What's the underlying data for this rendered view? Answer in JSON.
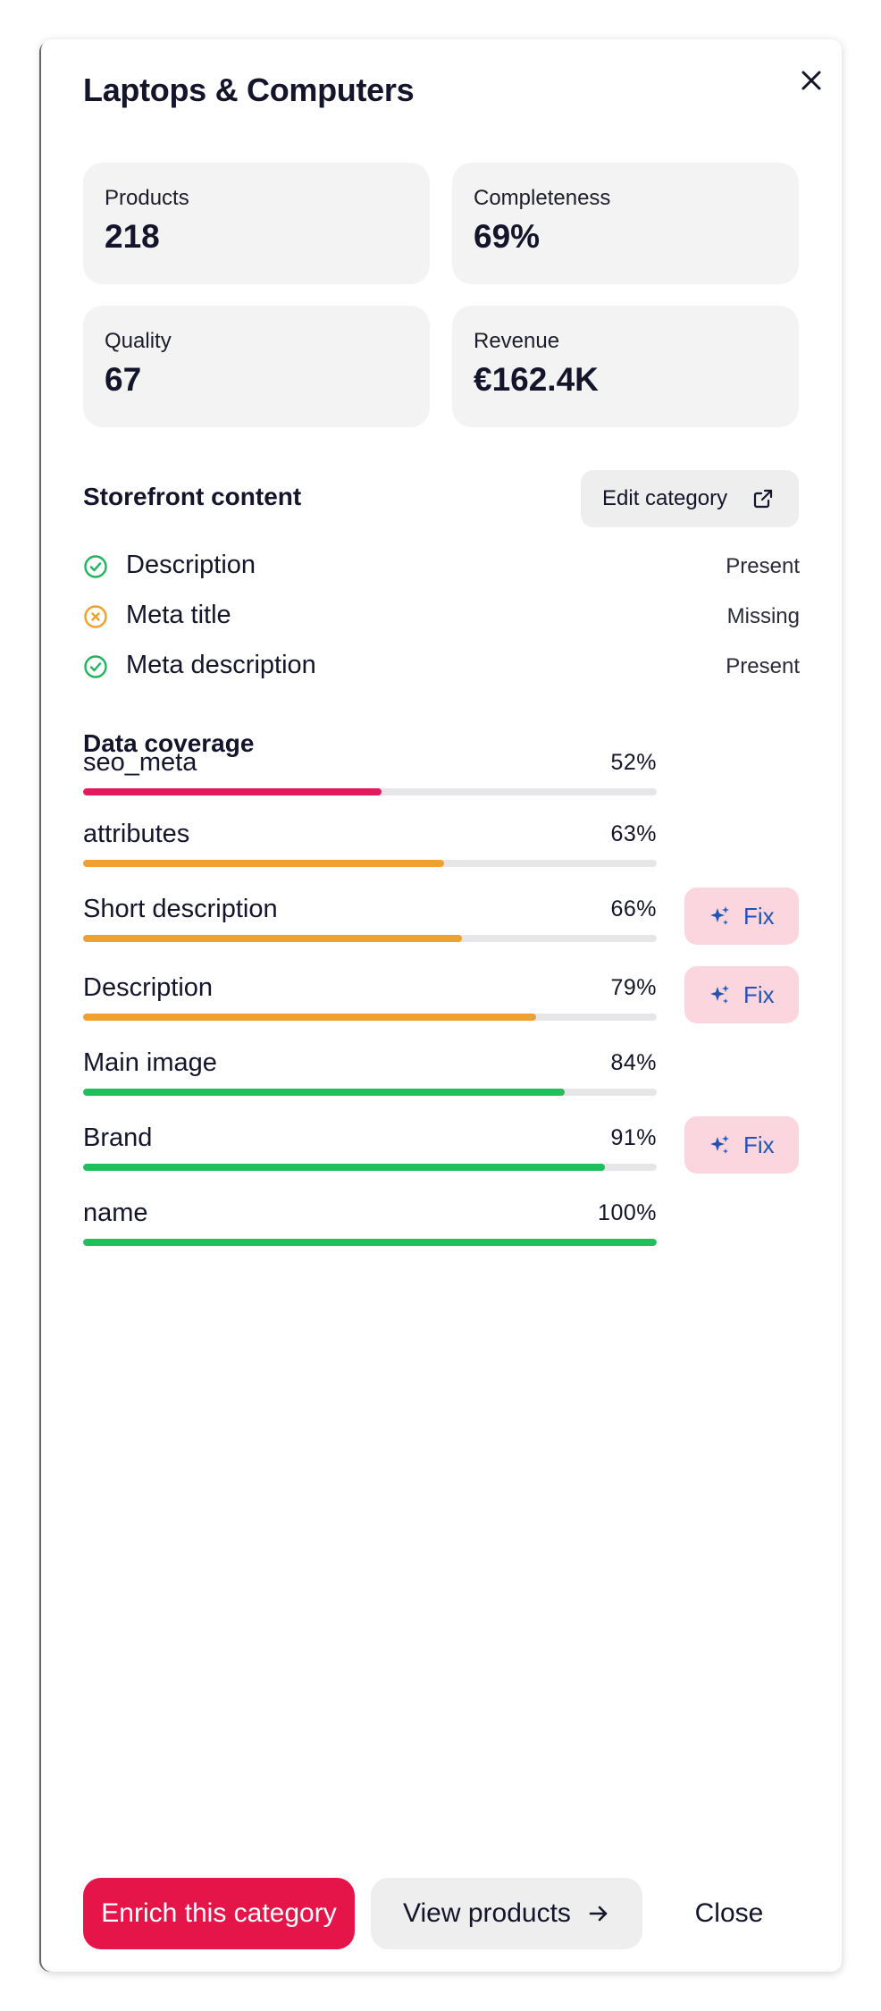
{
  "dialog": {
    "title": "Laptops & Computers",
    "close_icon": "close-icon"
  },
  "stats": [
    {
      "label": "Products",
      "value": "218"
    },
    {
      "label": "Completeness",
      "value": "69%"
    },
    {
      "label": "Quality",
      "value": "67"
    },
    {
      "label": "Revenue",
      "value": "€162.4K"
    }
  ],
  "storefront": {
    "heading": "Storefront content",
    "edit_button": "Edit category",
    "edit_icon": "external-link-icon",
    "items": [
      {
        "name": "Description",
        "status": "Present",
        "icon": "check-circle-icon",
        "color": "#22b35e"
      },
      {
        "name": "Meta title",
        "status": "Missing",
        "icon": "x-circle-icon",
        "color": "#efa12f"
      },
      {
        "name": "Meta description",
        "status": "Present",
        "icon": "check-circle-icon",
        "color": "#22b35e"
      }
    ]
  },
  "coverage": {
    "heading": "Data coverage",
    "fix_label": "Fix",
    "fix_icon": "sparkles-icon",
    "items": [
      {
        "name": "seo_meta",
        "pct_label": "52%",
        "value": 0.52,
        "color": "#e5195d",
        "fix": false
      },
      {
        "name": "attributes",
        "pct_label": "63%",
        "value": 0.63,
        "color": "#efa12f",
        "fix": false
      },
      {
        "name": "Short description",
        "pct_label": "66%",
        "value": 0.66,
        "color": "#efa12f",
        "fix": true
      },
      {
        "name": "Description",
        "pct_label": "79%",
        "value": 0.79,
        "color": "#efa12f",
        "fix": true
      },
      {
        "name": "Main image",
        "pct_label": "84%",
        "value": 0.84,
        "color": "#1fbf5c",
        "fix": false
      },
      {
        "name": "Brand",
        "pct_label": "91%",
        "value": 0.91,
        "color": "#1fbf5c",
        "fix": true
      },
      {
        "name": "name",
        "pct_label": "100%",
        "value": 1.0,
        "color": "#1fbf5c",
        "fix": false
      }
    ]
  },
  "footer": {
    "enrich_button": "Enrich this category",
    "view_button": "View products",
    "view_icon": "arrow-right-icon",
    "close_button": "Close"
  },
  "colors": {
    "accent": "#e5154a",
    "fix_bg": "#fbd6df",
    "fix_text": "#1f55b5"
  }
}
